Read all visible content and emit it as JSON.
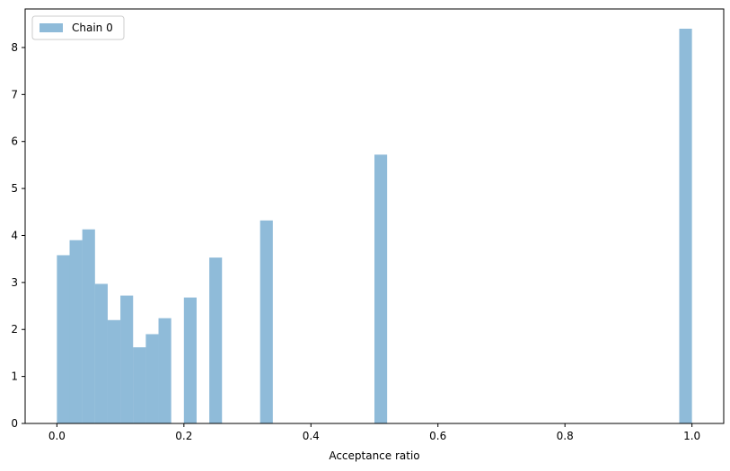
{
  "chart_data": {
    "type": "bar",
    "title": "",
    "xlabel": "Acceptance ratio",
    "ylabel": "",
    "xlim": [
      -0.05,
      1.05
    ],
    "ylim": [
      0,
      8.82
    ],
    "xticks": [
      "0.0",
      "0.2",
      "0.4",
      "0.6",
      "0.8",
      "1.0"
    ],
    "yticks": [
      "0",
      "1",
      "2",
      "3",
      "4",
      "5",
      "6",
      "7",
      "8"
    ],
    "bin_width": 0.02,
    "grid": false,
    "legend_position": "top-left",
    "series": [
      {
        "name": "Chain 0",
        "color": "#1f77b4",
        "opacity": 0.5,
        "bins": [
          {
            "x0": 0.0,
            "value": 3.58
          },
          {
            "x0": 0.02,
            "value": 3.9
          },
          {
            "x0": 0.04,
            "value": 4.13
          },
          {
            "x0": 0.06,
            "value": 2.97
          },
          {
            "x0": 0.08,
            "value": 2.2
          },
          {
            "x0": 0.1,
            "value": 2.72
          },
          {
            "x0": 0.12,
            "value": 1.62
          },
          {
            "x0": 0.14,
            "value": 1.9
          },
          {
            "x0": 0.16,
            "value": 2.24
          },
          {
            "x0": 0.2,
            "value": 2.68
          },
          {
            "x0": 0.24,
            "value": 3.53
          },
          {
            "x0": 0.32,
            "value": 4.32
          },
          {
            "x0": 0.5,
            "value": 5.72
          },
          {
            "x0": 0.98,
            "value": 8.4
          }
        ]
      }
    ]
  }
}
